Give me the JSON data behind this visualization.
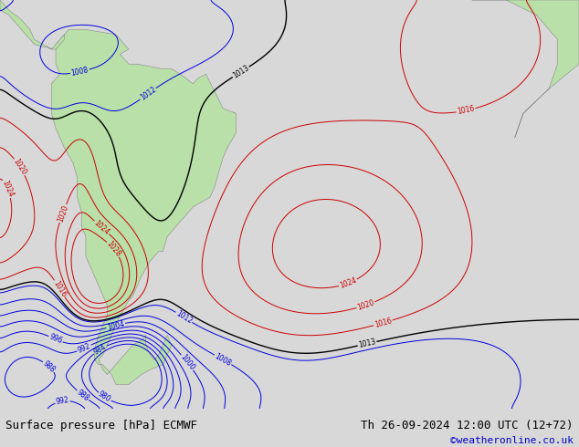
{
  "title_left": "Surface pressure [hPa] ECMWF",
  "title_right": "Th 26-09-2024 12:00 UTC (12+72)",
  "watermark": "©weatheronline.co.uk",
  "watermark_color": "#0000cc",
  "background_color": "#d8d8d8",
  "land_color": "#b8e0a8",
  "ocean_color": "#d8d8d8",
  "text_color": "#000000",
  "title_fontsize": 9,
  "watermark_fontsize": 8,
  "figsize": [
    6.34,
    4.9
  ],
  "dpi": 100
}
